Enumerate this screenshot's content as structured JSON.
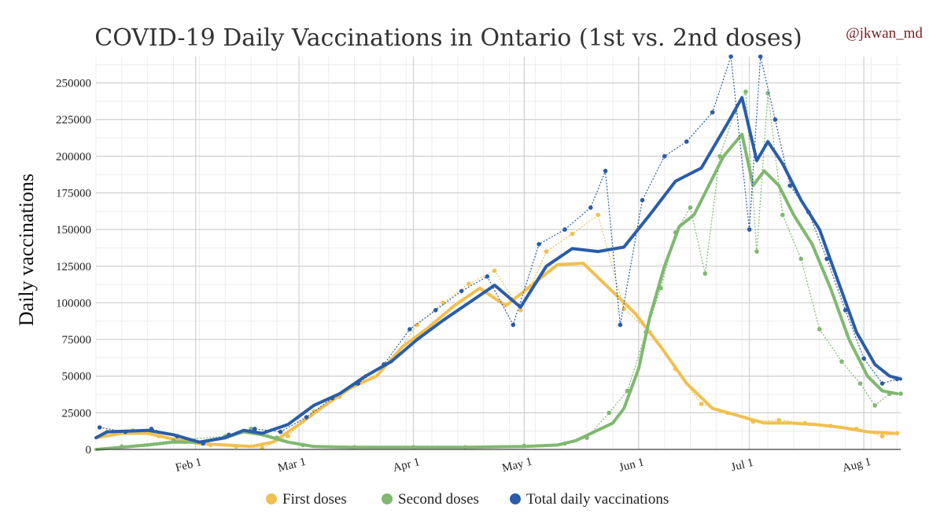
{
  "chart_data": {
    "type": "line",
    "title": "COVID-19 Daily Vaccinations in Ontario (1st vs. 2nd doses)",
    "credit": "@jkwan_md",
    "ylabel": "Daily vaccinations",
    "xlabel": "",
    "ylim": [
      0,
      268000
    ],
    "xlim": [
      "2021-01-05",
      "2021-08-11"
    ],
    "y_ticks": [
      0,
      25000,
      50000,
      75000,
      100000,
      125000,
      150000,
      175000,
      200000,
      225000,
      250000
    ],
    "x_ticks": [
      {
        "label": "Feb 1",
        "date": "2021-02-01"
      },
      {
        "label": "Mar 1",
        "date": "2021-03-01"
      },
      {
        "label": "Apr 1",
        "date": "2021-04-01"
      },
      {
        "label": "May 1",
        "date": "2021-05-01"
      },
      {
        "label": "Jun 1",
        "date": "2021-06-01"
      },
      {
        "label": "Jul 1",
        "date": "2021-07-01"
      },
      {
        "label": "Aug 1",
        "date": "2021-08-01"
      }
    ],
    "grid": true,
    "legend_position": "bottom",
    "series": [
      {
        "name": "First doses",
        "color": "#f0c050",
        "trend": [
          [
            "2021-01-05",
            8000
          ],
          [
            "2021-01-12",
            11000
          ],
          [
            "2021-01-19",
            11000
          ],
          [
            "2021-01-26",
            7000
          ],
          [
            "2021-02-02",
            4000
          ],
          [
            "2021-02-09",
            3000
          ],
          [
            "2021-02-16",
            2000
          ],
          [
            "2021-02-22",
            5000
          ],
          [
            "2021-03-01",
            17000
          ],
          [
            "2021-03-08",
            30000
          ],
          [
            "2021-03-15",
            42000
          ],
          [
            "2021-03-22",
            50000
          ],
          [
            "2021-03-29",
            70000
          ],
          [
            "2021-04-05",
            83000
          ],
          [
            "2021-04-12",
            98000
          ],
          [
            "2021-04-19",
            110000
          ],
          [
            "2021-04-26",
            98000
          ],
          [
            "2021-05-03",
            112000
          ],
          [
            "2021-05-10",
            126000
          ],
          [
            "2021-05-17",
            127000
          ],
          [
            "2021-05-24",
            110000
          ],
          [
            "2021-05-31",
            93000
          ],
          [
            "2021-06-07",
            70000
          ],
          [
            "2021-06-14",
            45000
          ],
          [
            "2021-06-21",
            28000
          ],
          [
            "2021-06-28",
            23000
          ],
          [
            "2021-07-05",
            18000
          ],
          [
            "2021-07-12",
            18000
          ],
          [
            "2021-07-19",
            17000
          ],
          [
            "2021-07-26",
            15000
          ],
          [
            "2021-08-02",
            12000
          ],
          [
            "2021-08-09",
            11000
          ]
        ],
        "daily": [
          [
            "2021-01-08",
            12000
          ],
          [
            "2021-01-15",
            13000
          ],
          [
            "2021-01-22",
            9000
          ],
          [
            "2021-01-29",
            5000
          ],
          [
            "2021-02-05",
            3000
          ],
          [
            "2021-02-12",
            2000
          ],
          [
            "2021-02-19",
            1000
          ],
          [
            "2021-02-26",
            9000
          ],
          [
            "2021-03-05",
            26000
          ],
          [
            "2021-03-12",
            36000
          ],
          [
            "2021-03-19",
            50000
          ],
          [
            "2021-03-26",
            60000
          ],
          [
            "2021-04-02",
            85000
          ],
          [
            "2021-04-09",
            100000
          ],
          [
            "2021-04-16",
            113000
          ],
          [
            "2021-04-23",
            122000
          ],
          [
            "2021-04-30",
            95000
          ],
          [
            "2021-05-07",
            135000
          ],
          [
            "2021-05-14",
            147000
          ],
          [
            "2021-05-21",
            160000
          ],
          [
            "2021-05-28",
            96000
          ],
          [
            "2021-06-04",
            80000
          ],
          [
            "2021-06-11",
            55000
          ],
          [
            "2021-06-18",
            31000
          ],
          [
            "2021-06-25",
            25000
          ],
          [
            "2021-07-02",
            19000
          ],
          [
            "2021-07-09",
            20000
          ],
          [
            "2021-07-16",
            18000
          ],
          [
            "2021-07-23",
            16000
          ],
          [
            "2021-07-30",
            14000
          ],
          [
            "2021-08-06",
            9000
          ],
          [
            "2021-08-10",
            11000
          ]
        ]
      },
      {
        "name": "Second doses",
        "color": "#80b870",
        "trend": [
          [
            "2021-01-05",
            0
          ],
          [
            "2021-01-19",
            3000
          ],
          [
            "2021-01-26",
            5000
          ],
          [
            "2021-02-02",
            5000
          ],
          [
            "2021-02-09",
            8000
          ],
          [
            "2021-02-14",
            12000
          ],
          [
            "2021-02-19",
            10000
          ],
          [
            "2021-02-26",
            5000
          ],
          [
            "2021-03-05",
            2000
          ],
          [
            "2021-03-15",
            1500
          ],
          [
            "2021-04-01",
            1500
          ],
          [
            "2021-04-15",
            1500
          ],
          [
            "2021-05-01",
            2000
          ],
          [
            "2021-05-10",
            3000
          ],
          [
            "2021-05-15",
            6000
          ],
          [
            "2021-05-20",
            12000
          ],
          [
            "2021-05-25",
            18000
          ],
          [
            "2021-05-28",
            28000
          ],
          [
            "2021-06-01",
            55000
          ],
          [
            "2021-06-04",
            90000
          ],
          [
            "2021-06-08",
            125000
          ],
          [
            "2021-06-12",
            152000
          ],
          [
            "2021-06-16",
            160000
          ],
          [
            "2021-06-20",
            180000
          ],
          [
            "2021-06-24",
            200000
          ],
          [
            "2021-06-29",
            215000
          ],
          [
            "2021-07-02",
            180000
          ],
          [
            "2021-07-05",
            190000
          ],
          [
            "2021-07-09",
            180000
          ],
          [
            "2021-07-13",
            160000
          ],
          [
            "2021-07-18",
            140000
          ],
          [
            "2021-07-23",
            110000
          ],
          [
            "2021-07-28",
            75000
          ],
          [
            "2021-08-02",
            50000
          ],
          [
            "2021-08-06",
            40000
          ],
          [
            "2021-08-10",
            38000
          ]
        ],
        "daily": [
          [
            "2021-01-12",
            2000
          ],
          [
            "2021-01-26",
            6000
          ],
          [
            "2021-02-09",
            9000
          ],
          [
            "2021-02-16",
            14000
          ],
          [
            "2021-02-23",
            8000
          ],
          [
            "2021-03-02",
            3000
          ],
          [
            "2021-03-16",
            1500
          ],
          [
            "2021-04-01",
            1500
          ],
          [
            "2021-04-15",
            1500
          ],
          [
            "2021-05-01",
            2500
          ],
          [
            "2021-05-12",
            4000
          ],
          [
            "2021-05-18",
            8000
          ],
          [
            "2021-05-24",
            25000
          ],
          [
            "2021-05-29",
            40000
          ],
          [
            "2021-06-03",
            80000
          ],
          [
            "2021-06-07",
            110000
          ],
          [
            "2021-06-11",
            148000
          ],
          [
            "2021-06-15",
            165000
          ],
          [
            "2021-06-19",
            120000
          ],
          [
            "2021-06-23",
            200000
          ],
          [
            "2021-06-27",
            230000
          ],
          [
            "2021-06-30",
            244000
          ],
          [
            "2021-07-03",
            135000
          ],
          [
            "2021-07-06",
            243000
          ],
          [
            "2021-07-10",
            160000
          ],
          [
            "2021-07-15",
            130000
          ],
          [
            "2021-07-20",
            82000
          ],
          [
            "2021-07-26",
            60000
          ],
          [
            "2021-07-31",
            45000
          ],
          [
            "2021-08-04",
            30000
          ],
          [
            "2021-08-08",
            38000
          ],
          [
            "2021-08-11",
            38000
          ]
        ]
      },
      {
        "name": "Total daily vaccinations",
        "color": "#2a5da8",
        "trend": [
          [
            "2021-01-05",
            8000
          ],
          [
            "2021-01-08",
            12000
          ],
          [
            "2021-01-19",
            13000
          ],
          [
            "2021-01-26",
            10000
          ],
          [
            "2021-02-02",
            5000
          ],
          [
            "2021-02-09",
            8000
          ],
          [
            "2021-02-14",
            13000
          ],
          [
            "2021-02-19",
            11000
          ],
          [
            "2021-02-26",
            17000
          ],
          [
            "2021-03-05",
            30000
          ],
          [
            "2021-03-12",
            38000
          ],
          [
            "2021-03-19",
            50000
          ],
          [
            "2021-03-26",
            60000
          ],
          [
            "2021-04-02",
            75000
          ],
          [
            "2021-04-09",
            88000
          ],
          [
            "2021-04-16",
            100000
          ],
          [
            "2021-04-23",
            112000
          ],
          [
            "2021-04-30",
            97000
          ],
          [
            "2021-05-07",
            125000
          ],
          [
            "2021-05-14",
            137000
          ],
          [
            "2021-05-21",
            135000
          ],
          [
            "2021-05-28",
            138000
          ],
          [
            "2021-06-04",
            160000
          ],
          [
            "2021-06-11",
            183000
          ],
          [
            "2021-06-18",
            192000
          ],
          [
            "2021-06-25",
            222000
          ],
          [
            "2021-06-29",
            240000
          ],
          [
            "2021-07-03",
            197000
          ],
          [
            "2021-07-06",
            210000
          ],
          [
            "2021-07-10",
            195000
          ],
          [
            "2021-07-15",
            170000
          ],
          [
            "2021-07-20",
            150000
          ],
          [
            "2021-07-25",
            115000
          ],
          [
            "2021-07-30",
            80000
          ],
          [
            "2021-08-04",
            58000
          ],
          [
            "2021-08-08",
            50000
          ],
          [
            "2021-08-11",
            48000
          ]
        ],
        "daily": [
          [
            "2021-01-06",
            15000
          ],
          [
            "2021-01-13",
            12000
          ],
          [
            "2021-01-20",
            14000
          ],
          [
            "2021-01-27",
            9000
          ],
          [
            "2021-02-03",
            4000
          ],
          [
            "2021-02-10",
            10000
          ],
          [
            "2021-02-17",
            14000
          ],
          [
            "2021-02-24",
            12000
          ],
          [
            "2021-03-03",
            22000
          ],
          [
            "2021-03-10",
            35000
          ],
          [
            "2021-03-17",
            45000
          ],
          [
            "2021-03-24",
            58000
          ],
          [
            "2021-03-31",
            82000
          ],
          [
            "2021-04-07",
            95000
          ],
          [
            "2021-04-14",
            108000
          ],
          [
            "2021-04-21",
            118000
          ],
          [
            "2021-04-28",
            85000
          ],
          [
            "2021-05-05",
            140000
          ],
          [
            "2021-05-12",
            150000
          ],
          [
            "2021-05-19",
            165000
          ],
          [
            "2021-05-23",
            190000
          ],
          [
            "2021-05-27",
            85000
          ],
          [
            "2021-06-02",
            170000
          ],
          [
            "2021-06-08",
            200000
          ],
          [
            "2021-06-14",
            210000
          ],
          [
            "2021-06-21",
            230000
          ],
          [
            "2021-06-26",
            268000
          ],
          [
            "2021-07-01",
            150000
          ],
          [
            "2021-07-04",
            268000
          ],
          [
            "2021-07-08",
            225000
          ],
          [
            "2021-07-12",
            180000
          ],
          [
            "2021-07-17",
            162000
          ],
          [
            "2021-07-22",
            130000
          ],
          [
            "2021-07-27",
            95000
          ],
          [
            "2021-08-01",
            62000
          ],
          [
            "2021-08-06",
            45000
          ],
          [
            "2021-08-10",
            48000
          ]
        ]
      }
    ]
  }
}
